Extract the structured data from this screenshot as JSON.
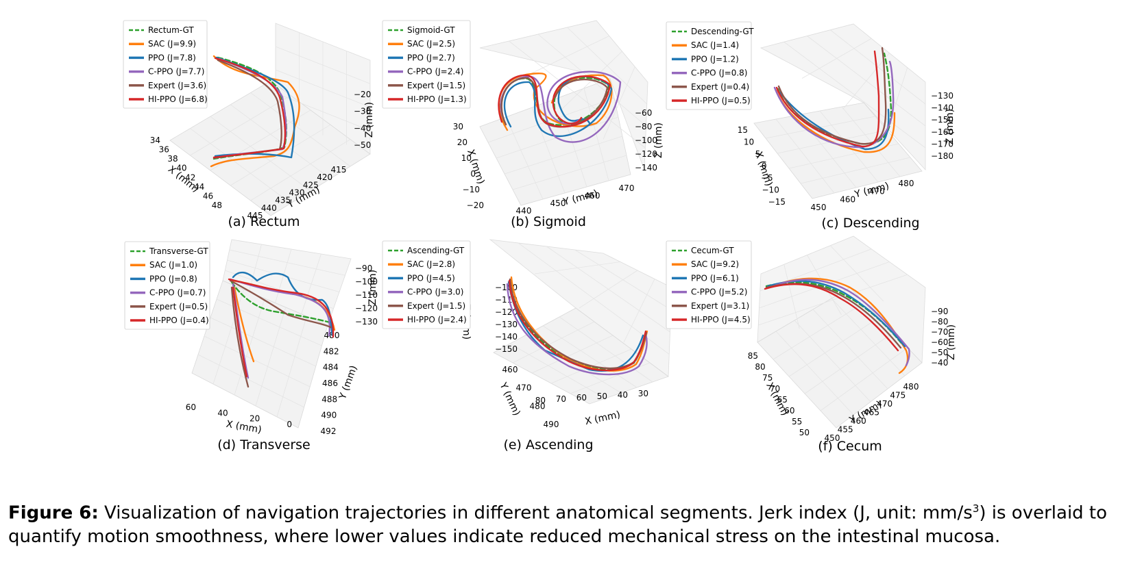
{
  "figure": {
    "caption_label": "Figure 6:",
    "caption_text_a": " Visualization of navigation trajectories in different anatomical segments. Jerk index (J, unit: mm/s",
    "caption_sup": "3",
    "caption_text_b": ") is overlaid to quantify motion smoothness, where lower values indicate reduced mechanical stress on the intestinal mucosa."
  },
  "colors": {
    "gt": "#2ca02c",
    "sac": "#ff7f0e",
    "ppo": "#1f77b4",
    "cppo": "#9467bd",
    "expert": "#8c564b",
    "hippo": "#d62728"
  },
  "chart_data": [
    {
      "type": "line",
      "subtitle": "(a) Rectum",
      "xlabel": "X (mm)",
      "ylabel": "Y (mm)",
      "zlabel": "Z (mm)",
      "xticks": [
        "48",
        "46",
        "44",
        "42",
        "40",
        "38",
        "36",
        "34"
      ],
      "yticks": [
        "445",
        "440",
        "435",
        "430",
        "425",
        "420",
        "415"
      ],
      "zticks": [
        "−20",
        "−30",
        "−40",
        "−50"
      ],
      "legend": [
        "Rectum-GT",
        "SAC (J=9.9)",
        "PPO (J=7.8)",
        "C-PPO (J=7.7)",
        "Expert (J=3.6)",
        "HI-PPO (J=6.8)"
      ],
      "series": [
        {
          "name": "Rectum-GT",
          "key": "gt",
          "jerk": null
        },
        {
          "name": "SAC",
          "key": "sac",
          "jerk": 9.9
        },
        {
          "name": "PPO",
          "key": "ppo",
          "jerk": 7.8
        },
        {
          "name": "C-PPO",
          "key": "cppo",
          "jerk": 7.7
        },
        {
          "name": "Expert",
          "key": "expert",
          "jerk": 3.6
        },
        {
          "name": "HI-PPO",
          "key": "hippo",
          "jerk": 6.8
        }
      ]
    },
    {
      "type": "line",
      "subtitle": "(b) Sigmoid",
      "xlabel": "X (mm)",
      "ylabel": "Y (mm)",
      "zlabel": "Z (mm)",
      "xticks": [
        "−20",
        "−10",
        "0",
        "10",
        "20",
        "30"
      ],
      "yticks": [
        "440",
        "450",
        "460",
        "470"
      ],
      "zticks": [
        "−60",
        "−80",
        "−100",
        "−120",
        "−140"
      ],
      "legend": [
        "Sigmoid-GT",
        "SAC (J=2.5)",
        "PPO (J=2.7)",
        "C-PPO (J=2.4)",
        "Expert (J=1.5)",
        "HI-PPO (J=1.3)"
      ],
      "series": [
        {
          "name": "Sigmoid-GT",
          "key": "gt",
          "jerk": null
        },
        {
          "name": "SAC",
          "key": "sac",
          "jerk": 2.5
        },
        {
          "name": "PPO",
          "key": "ppo",
          "jerk": 2.7
        },
        {
          "name": "C-PPO",
          "key": "cppo",
          "jerk": 2.4
        },
        {
          "name": "Expert",
          "key": "expert",
          "jerk": 1.5
        },
        {
          "name": "HI-PPO",
          "key": "hippo",
          "jerk": 1.3
        }
      ]
    },
    {
      "type": "line",
      "subtitle": "(c) Descending",
      "xlabel": "X (mm)",
      "ylabel": "Y (mm)",
      "zlabel": "Z (mm)",
      "xticks": [
        "−15",
        "−10",
        "−5",
        "0",
        "5",
        "10",
        "15"
      ],
      "yticks": [
        "450",
        "460",
        "470",
        "480"
      ],
      "zticks": [
        "−130",
        "−140",
        "−150",
        "−160",
        "−170",
        "−180"
      ],
      "legend": [
        "Descending-GT",
        "SAC (J=1.4)",
        "PPO (J=1.2)",
        "C-PPO (J=0.8)",
        "Expert (J=0.4)",
        "HI-PPO (J=0.5)"
      ],
      "series": [
        {
          "name": "Descending-GT",
          "key": "gt",
          "jerk": null
        },
        {
          "name": "SAC",
          "key": "sac",
          "jerk": 1.4
        },
        {
          "name": "PPO",
          "key": "ppo",
          "jerk": 1.2
        },
        {
          "name": "C-PPO",
          "key": "cppo",
          "jerk": 0.8
        },
        {
          "name": "Expert",
          "key": "expert",
          "jerk": 0.4
        },
        {
          "name": "HI-PPO",
          "key": "hippo",
          "jerk": 0.5
        }
      ]
    },
    {
      "type": "line",
      "subtitle": "(d) Transverse",
      "xlabel": "X (mm)",
      "ylabel": "Y (mm)",
      "zlabel": "Z (mm)",
      "xticks": [
        "60",
        "40",
        "20",
        "0"
      ],
      "yticks": [
        "480",
        "482",
        "484",
        "486",
        "488",
        "490",
        "492"
      ],
      "zticks": [
        "−90",
        "−100",
        "−110",
        "−120",
        "−130"
      ],
      "legend": [
        "Transverse-GT",
        "SAC  (J=1.0)",
        "PPO (J=0.8)",
        "C-PPO (J=0.7)",
        "Expert (J=0.5)",
        "HI-PPO (J=0.4)"
      ],
      "series": [
        {
          "name": "Transverse-GT",
          "key": "gt",
          "jerk": null
        },
        {
          "name": "SAC",
          "key": "sac",
          "jerk": 1.0
        },
        {
          "name": "PPO",
          "key": "ppo",
          "jerk": 0.8
        },
        {
          "name": "C-PPO",
          "key": "cppo",
          "jerk": 0.7
        },
        {
          "name": "Expert",
          "key": "expert",
          "jerk": 0.5
        },
        {
          "name": "HI-PPO",
          "key": "hippo",
          "jerk": 0.4
        }
      ]
    },
    {
      "type": "line",
      "subtitle": "(e) Ascending",
      "xlabel": "X (mm)",
      "ylabel": "Y (mm)",
      "zlabel": "Z (mm)",
      "xticks": [
        "80",
        "70",
        "60",
        "50",
        "40",
        "30"
      ],
      "yticks": [
        "460",
        "470",
        "480",
        "490"
      ],
      "zticks": [
        "−100",
        "−110",
        "−120",
        "−130",
        "−140",
        "−150"
      ],
      "legend": [
        "Ascending-GT",
        "SAC  (J=2.8)",
        "PPO (J=4.5)",
        "C-PPO (J=3.0)",
        "Expert (J=1.5)",
        "HI-PPO (J=2.4)"
      ],
      "series": [
        {
          "name": "Ascending-GT",
          "key": "gt",
          "jerk": null
        },
        {
          "name": "SAC",
          "key": "sac",
          "jerk": 2.8
        },
        {
          "name": "PPO",
          "key": "ppo",
          "jerk": 4.5
        },
        {
          "name": "C-PPO",
          "key": "cppo",
          "jerk": 3.0
        },
        {
          "name": "Expert",
          "key": "expert",
          "jerk": 1.5
        },
        {
          "name": "HI-PPO",
          "key": "hippo",
          "jerk": 2.4
        }
      ]
    },
    {
      "type": "line",
      "subtitle": "(f) Cecum",
      "xlabel": "X (mm)",
      "ylabel": "Y (mm)",
      "zlabel": "Z (mm)",
      "xticks": [
        "85",
        "80",
        "75",
        "70",
        "65",
        "60",
        "55",
        "50"
      ],
      "yticks": [
        "450",
        "455",
        "460",
        "465",
        "470",
        "475",
        "480"
      ],
      "zticks": [
        "−90",
        "−80",
        "−70",
        "−60",
        "−50",
        "−40"
      ],
      "legend": [
        "Cecum-GT",
        "SAC  (J=9.2)",
        "PPO (J=6.1)",
        "C-PPO (J=5.2)",
        "Expert (J=3.1)",
        "HI-PPO (J=4.5)"
      ],
      "series": [
        {
          "name": "Cecum-GT",
          "key": "gt",
          "jerk": null
        },
        {
          "name": "SAC",
          "key": "sac",
          "jerk": 9.2
        },
        {
          "name": "PPO",
          "key": "ppo",
          "jerk": 6.1
        },
        {
          "name": "C-PPO",
          "key": "cppo",
          "jerk": 5.2
        },
        {
          "name": "Expert",
          "key": "expert",
          "jerk": 3.1
        },
        {
          "name": "HI-PPO",
          "key": "hippo",
          "jerk": 4.5
        }
      ]
    }
  ]
}
